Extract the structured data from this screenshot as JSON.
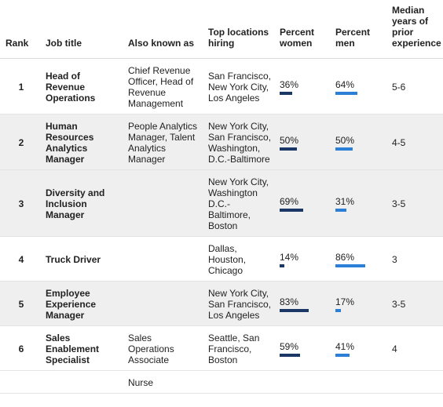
{
  "table": {
    "headers": [
      "Rank",
      "Job title",
      "Also known as",
      "Top locations hiring",
      "Percent women",
      "Percent men",
      "Median years of prior experience"
    ],
    "rows": [
      {
        "rank": 1,
        "job_title": "Head of Revenue Operations",
        "also_known_as": "Chief Revenue Officer, Head of Revenue Management",
        "top_locations": "San Francisco, New York City, Los Angeles",
        "percent_women": {
          "value": 36,
          "label": "36%"
        },
        "percent_men": {
          "value": 64,
          "label": "64%"
        },
        "median_years": "5-6"
      },
      {
        "rank": 2,
        "job_title": "Human Resources Analytics Manager",
        "also_known_as": "People Analytics Manager, Talent Analytics Manager",
        "top_locations": "New York City, San Francisco, Washington, D.C.-Baltimore",
        "percent_women": {
          "value": 50,
          "label": "50%"
        },
        "percent_men": {
          "value": 50,
          "label": "50%"
        },
        "median_years": "4-5"
      },
      {
        "rank": 3,
        "job_title": "Diversity and Inclusion Manager",
        "also_known_as": null,
        "top_locations": "New York City, Washington D.C.-Baltimore, Boston",
        "percent_women": {
          "value": 69,
          "label": "69%"
        },
        "percent_men": {
          "value": 31,
          "label": "31%"
        },
        "median_years": "3-5"
      },
      {
        "rank": 4,
        "job_title": "Truck Driver",
        "also_known_as": null,
        "top_locations": "Dallas, Houston, Chicago",
        "percent_women": {
          "value": 14,
          "label": "14%"
        },
        "percent_men": {
          "value": 86,
          "label": "86%"
        },
        "median_years": "3"
      },
      {
        "rank": 5,
        "job_title": "Employee Experience Manager",
        "also_known_as": null,
        "top_locations": "New York City, San Francisco, Los Angeles",
        "percent_women": {
          "value": 83,
          "label": "83%"
        },
        "percent_men": {
          "value": 17,
          "label": "17%"
        },
        "median_years": "3-5"
      },
      {
        "rank": 6,
        "job_title": "Sales Enablement Specialist",
        "also_known_as": "Sales Operations Associate",
        "top_locations": "Seattle, San Francisco, Boston",
        "percent_women": {
          "value": 59,
          "label": "59%"
        },
        "percent_men": {
          "value": 41,
          "label": "41%"
        },
        "median_years": "4"
      },
      {
        "rank": null,
        "job_title": null,
        "also_known_as": "Nurse",
        "top_locations": null,
        "percent_women": null,
        "percent_men": null,
        "median_years": null
      }
    ],
    "bar_colors": {
      "percent_women": "#1b3766",
      "percent_men": "#2b7fd6"
    }
  }
}
